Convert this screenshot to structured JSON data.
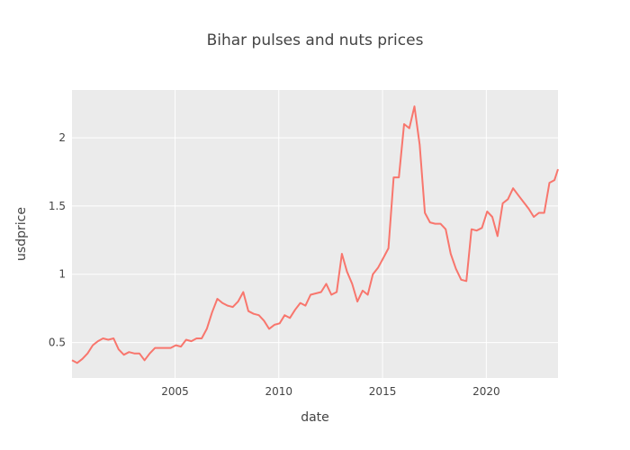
{
  "chart_data": {
    "type": "line",
    "title": "Bihar pulses and nuts prices",
    "xlabel": "date",
    "ylabel": "usdprice",
    "xlim": [
      "2000-01-15",
      "2023-06-15"
    ],
    "ylim": [
      0.24,
      2.35
    ],
    "xticks": [
      {
        "value": "2005-01-01",
        "label": "2005"
      },
      {
        "value": "2010-01-01",
        "label": "2010"
      },
      {
        "value": "2015-01-01",
        "label": "2015"
      },
      {
        "value": "2020-01-01",
        "label": "2020"
      }
    ],
    "yticks": [
      {
        "value": 0.5,
        "label": "0.5"
      },
      {
        "value": 1,
        "label": "1"
      },
      {
        "value": 1.5,
        "label": "1.5"
      },
      {
        "value": 2,
        "label": "2"
      }
    ],
    "grid": true,
    "colors": {
      "line": "#f8766d",
      "plot_bg": "#ebebeb",
      "grid": "#ffffff",
      "text": "#444444"
    },
    "series": [
      {
        "x": [
          "2000-01-15",
          "2000-04-15",
          "2000-07-15",
          "2000-10-15",
          "2001-01-15",
          "2001-04-15",
          "2001-07-15",
          "2001-10-15",
          "2002-01-15",
          "2002-04-15",
          "2002-07-15",
          "2002-10-15",
          "2003-01-15",
          "2003-04-15",
          "2003-07-15",
          "2003-10-15",
          "2004-01-15",
          "2004-04-15",
          "2004-07-15",
          "2004-10-15",
          "2005-01-15",
          "2005-04-15",
          "2005-07-15",
          "2005-10-15",
          "2006-01-15",
          "2006-04-15",
          "2006-07-15",
          "2006-10-15",
          "2007-01-15",
          "2007-04-15",
          "2007-07-15",
          "2007-10-15",
          "2008-01-15",
          "2008-04-15",
          "2008-07-15",
          "2008-10-15",
          "2009-01-15",
          "2009-04-15",
          "2009-07-15",
          "2009-10-15",
          "2010-01-15",
          "2010-04-15",
          "2010-07-15",
          "2010-10-15",
          "2011-01-15",
          "2011-04-15",
          "2011-07-15",
          "2011-10-15",
          "2012-01-15",
          "2012-04-15",
          "2012-07-15",
          "2012-10-15",
          "2013-01-15",
          "2013-04-15",
          "2013-07-15",
          "2013-10-15",
          "2014-01-15",
          "2014-04-15",
          "2014-07-15",
          "2014-10-15",
          "2015-01-15",
          "2015-04-15",
          "2015-07-15",
          "2015-10-15",
          "2016-01-15",
          "2016-04-15",
          "2016-07-15",
          "2016-10-15",
          "2017-01-15",
          "2017-04-15",
          "2017-07-15",
          "2017-10-15",
          "2018-01-15",
          "2018-04-15",
          "2018-07-15",
          "2018-10-15",
          "2019-01-15",
          "2019-04-15",
          "2019-07-15",
          "2019-10-15",
          "2020-01-15",
          "2020-04-15",
          "2020-07-15",
          "2020-10-15",
          "2021-01-15",
          "2021-04-15",
          "2021-07-15",
          "2021-10-15",
          "2022-01-15",
          "2022-04-15",
          "2022-07-15",
          "2022-10-15",
          "2023-01-15",
          "2023-04-15",
          "2023-06-15"
        ],
        "y": [
          0.37,
          0.35,
          0.38,
          0.42,
          0.48,
          0.51,
          0.53,
          0.52,
          0.53,
          0.45,
          0.41,
          0.43,
          0.42,
          0.42,
          0.37,
          0.42,
          0.46,
          0.46,
          0.46,
          0.46,
          0.48,
          0.47,
          0.52,
          0.51,
          0.53,
          0.53,
          0.6,
          0.72,
          0.82,
          0.79,
          0.77,
          0.76,
          0.8,
          0.87,
          0.73,
          0.71,
          0.7,
          0.66,
          0.6,
          0.63,
          0.64,
          0.7,
          0.68,
          0.74,
          0.79,
          0.77,
          0.85,
          0.86,
          0.87,
          0.93,
          0.85,
          0.87,
          1.15,
          1.02,
          0.93,
          0.8,
          0.88,
          0.85,
          1.0,
          1.05,
          1.12,
          1.19,
          1.71,
          1.71,
          2.1,
          2.07,
          2.23,
          1.95,
          1.45,
          1.38,
          1.37,
          1.37,
          1.33,
          1.15,
          1.04,
          0.96,
          0.95,
          1.33,
          1.32,
          1.34,
          1.46,
          1.42,
          1.28,
          1.52,
          1.55,
          1.63,
          1.58,
          1.53,
          1.48,
          1.42,
          1.45,
          1.45,
          1.67,
          1.69,
          1.77
        ]
      }
    ]
  }
}
